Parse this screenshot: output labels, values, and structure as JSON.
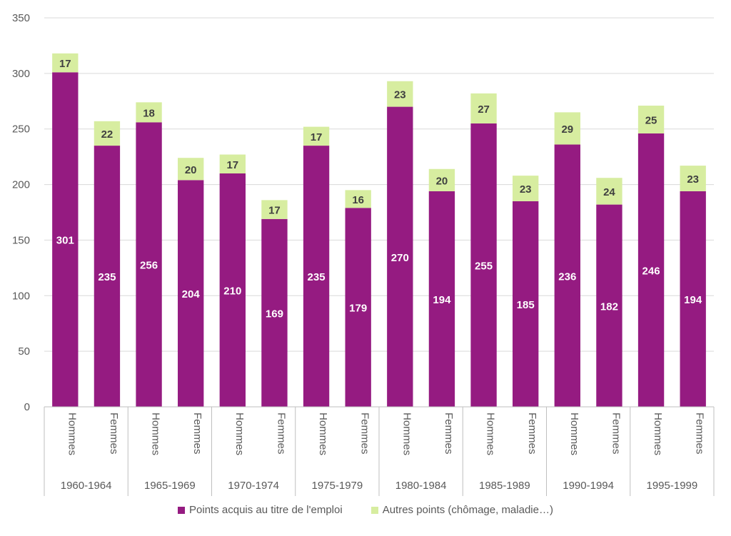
{
  "chart_data": {
    "type": "bar",
    "stacked": true,
    "title": "",
    "xlabel": "",
    "ylabel": "",
    "ylim": [
      0,
      350
    ],
    "yticks": [
      0,
      50,
      100,
      150,
      200,
      250,
      300,
      350
    ],
    "grid": true,
    "legend_position": "bottom",
    "groups": [
      "1960-1964",
      "1965-1969",
      "1970-1974",
      "1975-1979",
      "1980-1984",
      "1985-1989",
      "1990-1994",
      "1995-1999"
    ],
    "subcategories": [
      "Hommes",
      "Femmes"
    ],
    "categories": [
      "1960-1964 Hommes",
      "1960-1964 Femmes",
      "1965-1969 Hommes",
      "1965-1969 Femmes",
      "1970-1974 Hommes",
      "1970-1974 Femmes",
      "1975-1979 Hommes",
      "1975-1979 Femmes",
      "1980-1984 Hommes",
      "1980-1984 Femmes",
      "1985-1989 Hommes",
      "1985-1989 Femmes",
      "1990-1994 Hommes",
      "1990-1994 Femmes",
      "1995-1999 Hommes",
      "1995-1999 Femmes"
    ],
    "series": [
      {
        "name": "Points acquis au titre de l'emploi",
        "color": "#951b81",
        "label_color": "#ffffff",
        "values": [
          301,
          235,
          256,
          204,
          210,
          169,
          235,
          179,
          270,
          194,
          255,
          185,
          236,
          182,
          246,
          194
        ]
      },
      {
        "name": "Autres points (chômage, maladie…)",
        "color": "#d7eda0",
        "label_color": "#404040",
        "values": [
          17,
          22,
          18,
          20,
          17,
          17,
          17,
          16,
          23,
          20,
          27,
          23,
          29,
          24,
          25,
          23
        ]
      }
    ]
  }
}
